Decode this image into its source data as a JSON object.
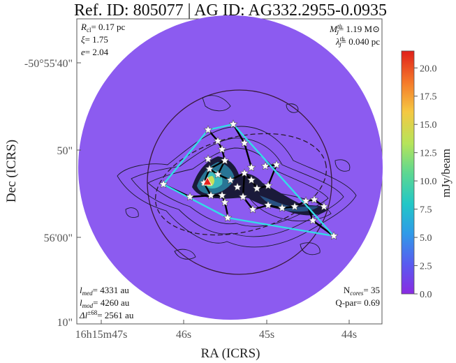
{
  "chart_data": {
    "type": "scatter",
    "title": "Ref. ID: 805077 | AG ID: AG332.2955-0.0935",
    "xlabel": "RA (ICRS)",
    "ylabel": "Dec (ICRS)",
    "x_tick_labels": [
      "16h15m47s",
      "46s",
      "45s",
      "44s"
    ],
    "y_tick_labels": [
      "-50°55'40\"",
      "50\"",
      "56'00\"",
      "10\""
    ],
    "colorbar": {
      "label": "mJy/beam",
      "ticks": [
        "0.0",
        "2.5",
        "5.0",
        "7.5",
        "10.0",
        "12.5",
        "15.0",
        "17.5",
        "20.0"
      ],
      "range": [
        0,
        21.5
      ]
    },
    "annotations": {
      "top_left": {
        "r_cl": "0.17 pc",
        "xi": "1.75",
        "e": "2.04"
      },
      "top_right": {
        "M_J_th": "1.19 M⊙",
        "lambda_J_th": "0.040 pc"
      },
      "bottom_left": {
        "l_med": "4331 au",
        "l_mod": "4260 au",
        "delta_l": "2561 au"
      },
      "bottom_right": {
        "n_cores": "35",
        "q_par": "0.69"
      }
    },
    "cores_count": 35,
    "colors": {
      "background_map": "#8e5cf2",
      "hull": "#33dde6",
      "mst": "#000000",
      "core_marker": "#ffffff",
      "peak_marker": "#e8201c"
    }
  }
}
